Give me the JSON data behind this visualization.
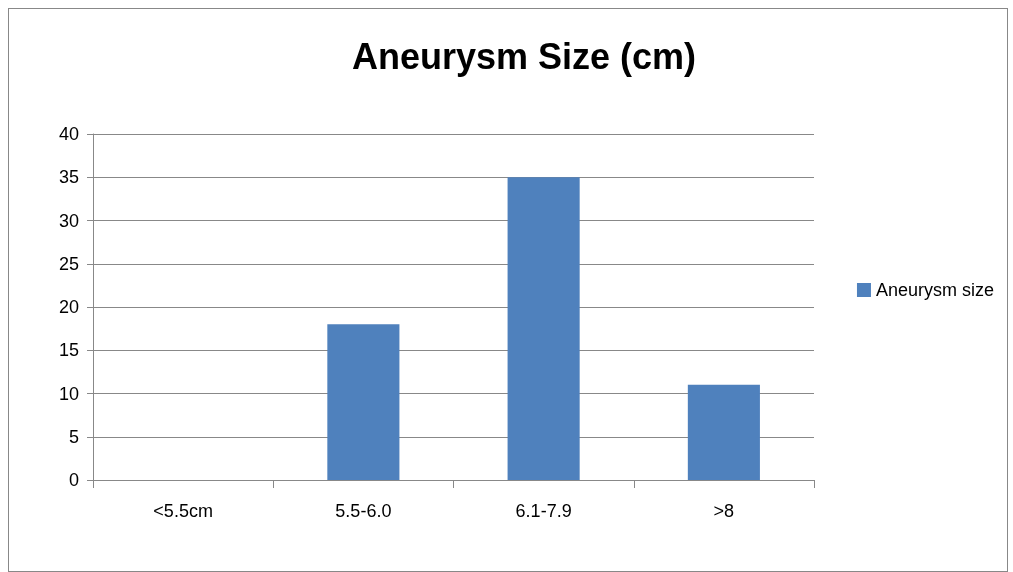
{
  "chart_data": {
    "type": "bar",
    "title": "Aneurysm Size (cm)",
    "categories": [
      "<5.5cm",
      "5.5-6.0",
      "6.1-7.9",
      ">8"
    ],
    "series": [
      {
        "name": "Aneurysm size",
        "color": "#4f81bd",
        "values": [
          0,
          18,
          35,
          11
        ]
      }
    ],
    "ylim": [
      0,
      40
    ],
    "yticks": [
      0,
      5,
      10,
      15,
      20,
      25,
      30,
      35,
      40
    ],
    "grid": "y",
    "legend": "right"
  }
}
